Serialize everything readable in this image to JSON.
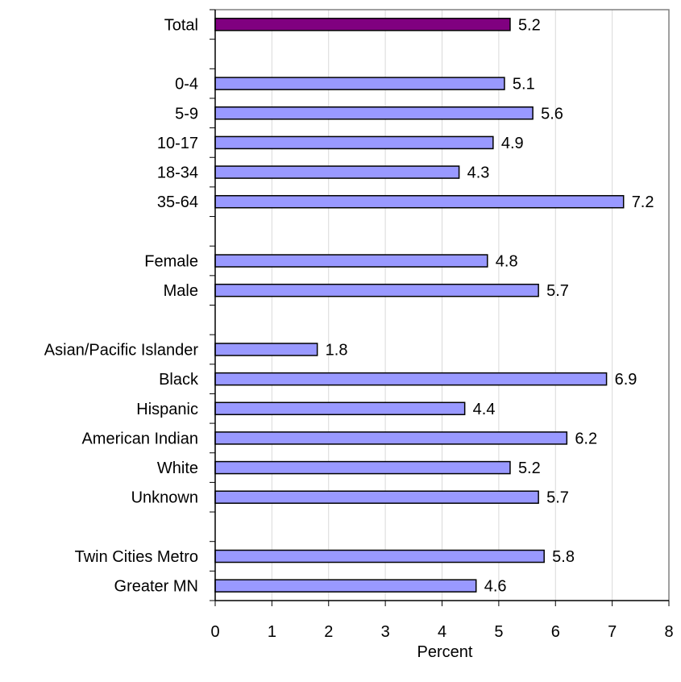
{
  "chart_data": {
    "type": "bar",
    "orientation": "horizontal",
    "xlabel": "Percent",
    "xlim": [
      0,
      8
    ],
    "xticks": [
      0,
      1,
      2,
      3,
      4,
      5,
      6,
      7,
      8
    ],
    "grid": "vertical",
    "legend": "none",
    "slots": [
      {
        "label": "Total",
        "value": 5.2,
        "color": "#800080"
      },
      null,
      {
        "label": "0-4",
        "value": 5.1,
        "color": "#9999ff"
      },
      {
        "label": "5-9",
        "value": 5.6,
        "color": "#9999ff"
      },
      {
        "label": "10-17",
        "value": 4.9,
        "color": "#9999ff"
      },
      {
        "label": "18-34",
        "value": 4.3,
        "color": "#9999ff"
      },
      {
        "label": "35-64",
        "value": 7.2,
        "color": "#9999ff"
      },
      null,
      {
        "label": "Female",
        "value": 4.8,
        "color": "#9999ff"
      },
      {
        "label": "Male",
        "value": 5.7,
        "color": "#9999ff"
      },
      null,
      {
        "label": "Asian/Pacific Islander",
        "value": 1.8,
        "color": "#9999ff"
      },
      {
        "label": "Black",
        "value": 6.9,
        "color": "#9999ff"
      },
      {
        "label": "Hispanic",
        "value": 4.4,
        "color": "#9999ff"
      },
      {
        "label": "American Indian",
        "value": 6.2,
        "color": "#9999ff"
      },
      {
        "label": "White",
        "value": 5.2,
        "color": "#9999ff"
      },
      {
        "label": "Unknown",
        "value": 5.7,
        "color": "#9999ff"
      },
      null,
      {
        "label": "Twin Cities Metro",
        "value": 5.8,
        "color": "#9999ff"
      },
      {
        "label": "Greater MN",
        "value": 4.6,
        "color": "#9999ff"
      }
    ],
    "colors": {
      "bar_border": "#000000",
      "grid": "#d9d9d9",
      "frame": "#808080",
      "axis": "#000000"
    }
  }
}
